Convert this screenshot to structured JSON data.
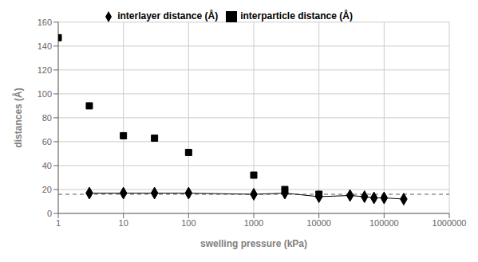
{
  "chart_data": {
    "type": "line",
    "xlabel": "swelling pressure (kPa)",
    "ylabel": "distances (Å)",
    "log": "x",
    "grid": true,
    "legend": "top",
    "xlim": [
      1,
      1000000
    ],
    "xticks": [
      1,
      10,
      100,
      1000,
      10000,
      100000,
      1000000
    ],
    "ylim": [
      0,
      160
    ],
    "yticks": [
      0,
      20,
      40,
      60,
      80,
      100,
      120,
      140,
      160
    ],
    "series": [
      {
        "name": "interlayer distance (Å)",
        "color": "#000000",
        "marker": "diamond",
        "line_style": "solid",
        "x": [
          3,
          10,
          30,
          100,
          1000,
          3000,
          10000,
          30000,
          50000,
          70000,
          100000,
          200000
        ],
        "values": [
          17,
          17,
          17,
          17,
          16,
          17,
          14,
          15,
          14,
          13,
          13,
          12
        ]
      },
      {
        "name": "interparticle distance (Å)",
        "color": "#000000",
        "marker": "square",
        "line_style": "none",
        "x": [
          1,
          3,
          10,
          30,
          100,
          1000,
          3000,
          10000
        ],
        "values": [
          147,
          90,
          65,
          63,
          51,
          32,
          20,
          16
        ]
      }
    ],
    "reference_lines": [
      {
        "y": 16,
        "color": "#555555",
        "line_style": "dashed"
      }
    ]
  }
}
